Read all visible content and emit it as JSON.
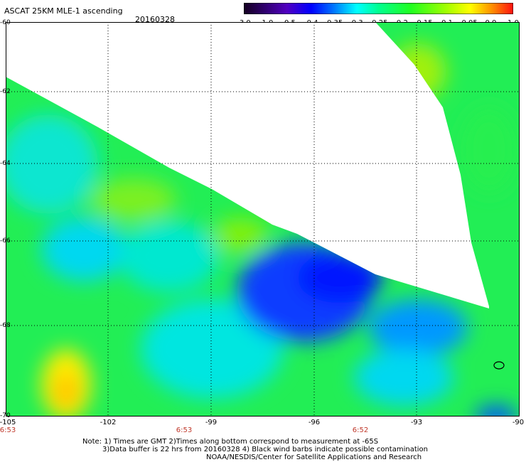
{
  "header": {
    "title": "ASCAT 25KM MLE-1 ascending",
    "date": "20160328"
  },
  "colorbar": {
    "ticks": [
      "-3.0",
      "-1.0",
      "-0.5",
      "-0.4",
      "-0.35",
      "-0.3",
      "-0.25",
      "-0.2",
      "-0.15",
      "-0.1",
      "-0.05",
      "0.0",
      "1.0"
    ],
    "colors": [
      "#1a0030",
      "#3c0070",
      "#6000c8",
      "#0000ff",
      "#0060ff",
      "#00b0ff",
      "#00ffff",
      "#00ff80",
      "#20ff20",
      "#a0ff00",
      "#ffff00",
      "#ff8000",
      "#ff2000"
    ]
  },
  "axes": {
    "lat_labels": [
      "-60",
      "-62",
      "-64",
      "-66",
      "-68",
      "-70"
    ],
    "lon_labels": [
      "-105",
      "-102",
      "-99",
      "-96",
      "-93",
      "-90"
    ],
    "time_labels": [
      "6:53",
      "6:53",
      "6:52"
    ]
  },
  "notes": {
    "line1": "Note: 1) Times are GMT 2)Times along bottom correspond to measurement at -65S",
    "line2": "3)Data buffer is 22 hrs from 20160328 4) Black wind barbs indicate possible contamination",
    "line3": "NOAA/NESDIS/Center for Satellite Applications and Research"
  }
}
